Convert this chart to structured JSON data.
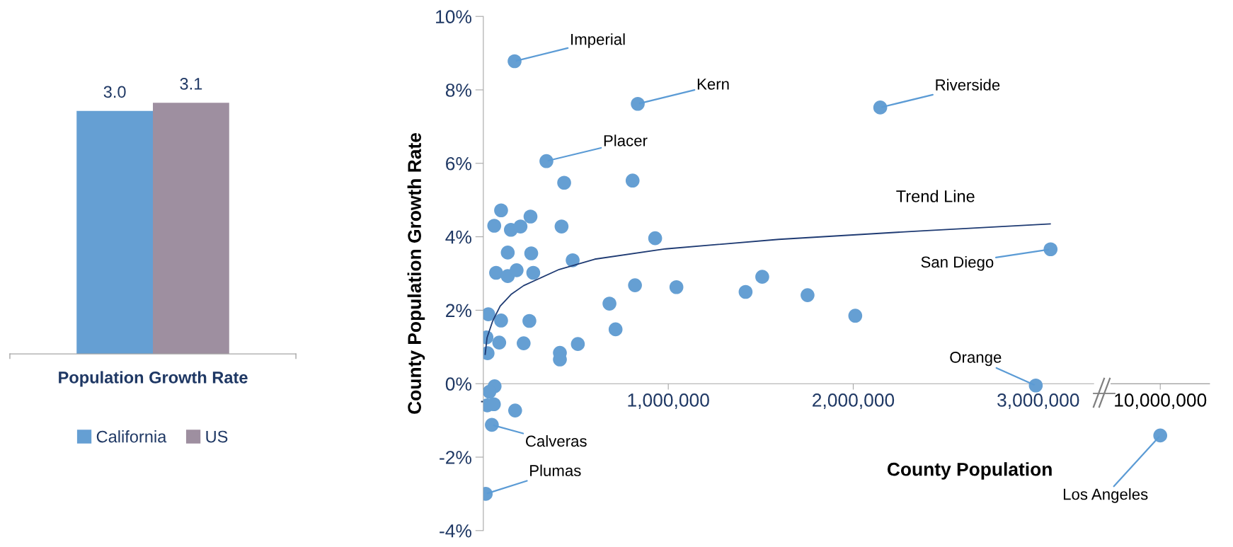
{
  "chart_data": [
    {
      "type": "bar",
      "categories": [
        null
      ],
      "xlabel": "Population Growth Rate",
      "legend": "bottom",
      "data_labels": true,
      "series": [
        {
          "name": "California",
          "color": "#659fd3",
          "values": [
            3.0
          ],
          "value_labels": [
            "3.0"
          ]
        },
        {
          "name": "US",
          "color": "#9e8fa0",
          "values": [
            3.1
          ],
          "value_labels": [
            "3.1"
          ]
        }
      ]
    },
    {
      "type": "scatter",
      "xlabel": "County Population",
      "ylabel": "County Population Growth Rate",
      "xlim": [
        0,
        3300000
      ],
      "xticks": [
        {
          "value": 0,
          "label": "-"
        },
        {
          "value": 1000000,
          "label": "1,000,000"
        },
        {
          "value": 2000000,
          "label": "2,000,000"
        },
        {
          "value": 3000000,
          "label": "3,000,000"
        }
      ],
      "ylim": [
        -4,
        10
      ],
      "yticks": [
        {
          "value": -4,
          "label": "-4%"
        },
        {
          "value": -2,
          "label": "-2%"
        },
        {
          "value": 0,
          "label": "0%"
        },
        {
          "value": 2,
          "label": "2%"
        },
        {
          "value": 4,
          "label": "4%"
        },
        {
          "value": 6,
          "label": "6%"
        },
        {
          "value": 8,
          "label": "8%"
        },
        {
          "value": 10,
          "label": "10%"
        }
      ],
      "grid": false,
      "marker": "circle",
      "series": [
        {
          "color": "#659fd3",
          "x": [
            169000,
            835000,
            341000,
            437000,
            807000,
            96000,
            59000,
            149000,
            201000,
            255000,
            423000,
            929000,
            132000,
            259000,
            483000,
            69000,
            132000,
            180000,
            270000,
            27000,
            96000,
            249000,
            17000,
            86000,
            23000,
            218000,
            414000,
            414000,
            511000,
            682000,
            715000,
            820000,
            1044000,
            1418000,
            1508000,
            2146000,
            1753000,
            2011000,
            3067000,
            2987000,
            61000,
            33000,
            21000,
            57000,
            172000,
            46000,
            13000
          ],
          "values": [
            8.78,
            7.62,
            6.06,
            5.47,
            5.53,
            4.72,
            4.3,
            4.19,
            4.28,
            4.55,
            4.28,
            3.96,
            3.57,
            3.55,
            3.36,
            3.02,
            2.93,
            3.09,
            3.02,
            1.89,
            1.72,
            1.71,
            1.26,
            1.12,
            0.83,
            1.1,
            0.84,
            0.66,
            1.08,
            2.18,
            1.48,
            2.68,
            2.63,
            2.5,
            2.91,
            7.52,
            2.41,
            1.85,
            3.66,
            -0.05,
            -0.07,
            -0.22,
            -0.59,
            -0.56,
            -0.73,
            -1.12,
            -3.0
          ]
        },
        {
          "name": "Trend Line",
          "type": "line",
          "color": "#1f3b73",
          "marker": "none",
          "x": [
            10000,
            20000,
            50000,
            91000,
            150000,
            218000,
            410000,
            602000,
            985000,
            1598000,
            2364000,
            3065000
          ],
          "values": [
            0.8,
            1.25,
            1.7,
            2.11,
            2.43,
            2.67,
            3.11,
            3.39,
            3.67,
            3.93,
            4.16,
            4.35
          ]
        }
      ],
      "annotations": [
        {
          "text": "Imperial",
          "x": 169000,
          "y": 8.78
        },
        {
          "text": "Kern",
          "x": 835000,
          "y": 7.62
        },
        {
          "text": "Placer",
          "x": 341000,
          "y": 6.06
        },
        {
          "text": "Riverside",
          "x": 2146000,
          "y": 7.52
        },
        {
          "text": "San Diego",
          "x": 3067000,
          "y": 3.66
        },
        {
          "text": "Orange",
          "x": 2987000,
          "y": -0.05
        },
        {
          "text": "Calveras",
          "x": 46000,
          "y": -1.12
        },
        {
          "text": "Plumas",
          "x": 13000,
          "y": -3.0
        }
      ]
    },
    {
      "type": "scatter",
      "categories": [
        "10,000,000"
      ],
      "ylim": [
        -4,
        10
      ],
      "tick_labels": "x",
      "grid": false,
      "marker": "circle",
      "series": [
        {
          "color": "#659fd3",
          "values": [
            -1.41
          ]
        }
      ],
      "annotations": [
        {
          "text": "Los Angeles",
          "x": "10,000,000",
          "y": -1.41
        }
      ]
    }
  ]
}
